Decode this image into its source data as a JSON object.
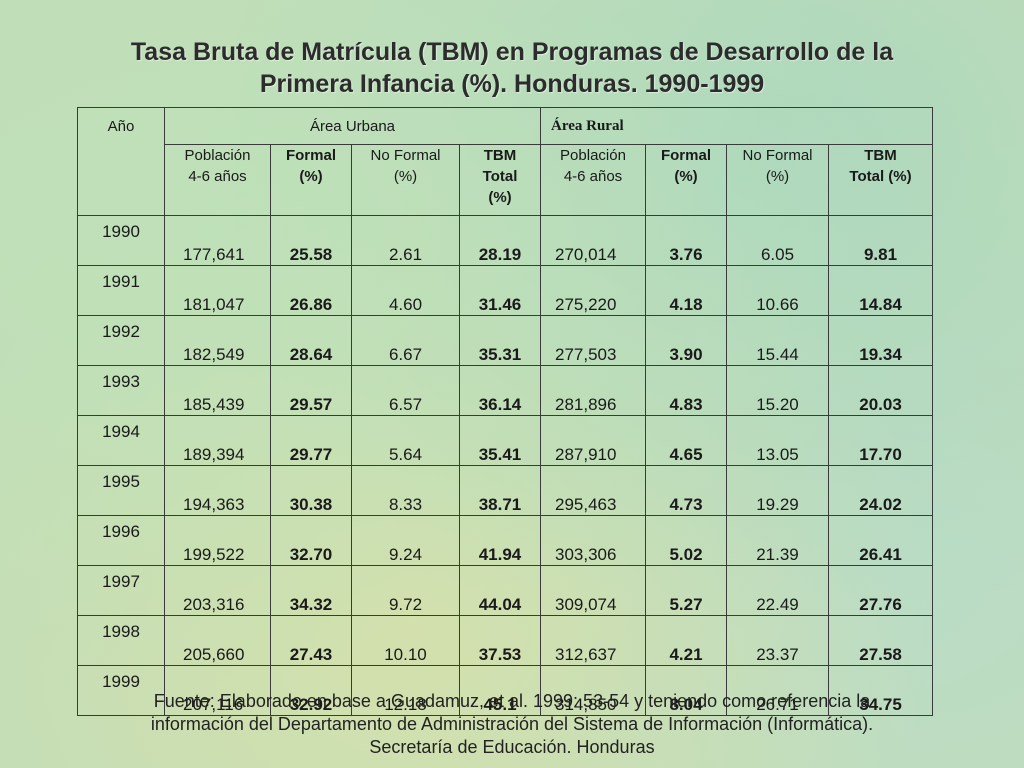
{
  "title": {
    "line1": "Tasa Bruta de Matrícula (TBM) en Programas de Desarrollo de la",
    "line2": "Primera Infancia (%). Honduras. 1990-1999"
  },
  "table": {
    "header_year": "Año",
    "header_urban": "Área Urbana",
    "header_rural": "Área Rural",
    "sub": {
      "u_pop": [
        "Población",
        "4-6 años"
      ],
      "u_formal": [
        "Formal",
        "(%)"
      ],
      "u_noformal": [
        "No Formal",
        "(%)"
      ],
      "u_tbm": [
        "TBM",
        "Total",
        "(%)"
      ],
      "r_pop": [
        "Población",
        "4-6 años"
      ],
      "r_formal": [
        "Formal",
        "(%)"
      ],
      "r_noformal": [
        "No Formal",
        "(%)"
      ],
      "r_tbm": [
        "TBM",
        "Total (%)"
      ]
    },
    "rows": [
      [
        "1990",
        "177,641",
        "25.58",
        "2.61",
        "28.19",
        "270,014",
        "3.76",
        "6.05",
        "9.81"
      ],
      [
        "1991",
        "181,047",
        "26.86",
        "4.60",
        "31.46",
        "275,220",
        "4.18",
        "10.66",
        "14.84"
      ],
      [
        "1992",
        "182,549",
        "28.64",
        "6.67",
        "35.31",
        "277,503",
        "3.90",
        "15.44",
        "19.34"
      ],
      [
        "1993",
        "185,439",
        "29.57",
        "6.57",
        "36.14",
        "281,896",
        "4.83",
        "15.20",
        "20.03"
      ],
      [
        "1994",
        "189,394",
        "29.77",
        "5.64",
        "35.41",
        "287,910",
        "4.65",
        "13.05",
        "17.70"
      ],
      [
        "1995",
        "194,363",
        "30.38",
        "8.33",
        "38.71",
        "295,463",
        "4.73",
        "19.29",
        "24.02"
      ],
      [
        "1996",
        "199,522",
        "32.70",
        "9.24",
        "41.94",
        "303,306",
        "5.02",
        "21.39",
        "26.41"
      ],
      [
        "1997",
        "203,316",
        "34.32",
        "9.72",
        "44.04",
        "309,074",
        "5.27",
        "22.49",
        "27.76"
      ],
      [
        "1998",
        "205,660",
        "27.43",
        "10.10",
        "37.53",
        "312,637",
        "4.21",
        "23.37",
        "27.58"
      ],
      [
        "1999",
        "207,116",
        "32.92",
        "12.18",
        "45.1",
        "314,850",
        "8.04",
        "26.71",
        "34.75"
      ]
    ]
  },
  "source": {
    "line1": "Fuente: Elaborado en base a Guadamuz, et al. 1999: 53-54 y teniendo como referencia la",
    "line2": "información del Departamento de Administración del  Sistema de Información (Informática).",
    "line3": "Secretaría de Educación. Honduras"
  }
}
